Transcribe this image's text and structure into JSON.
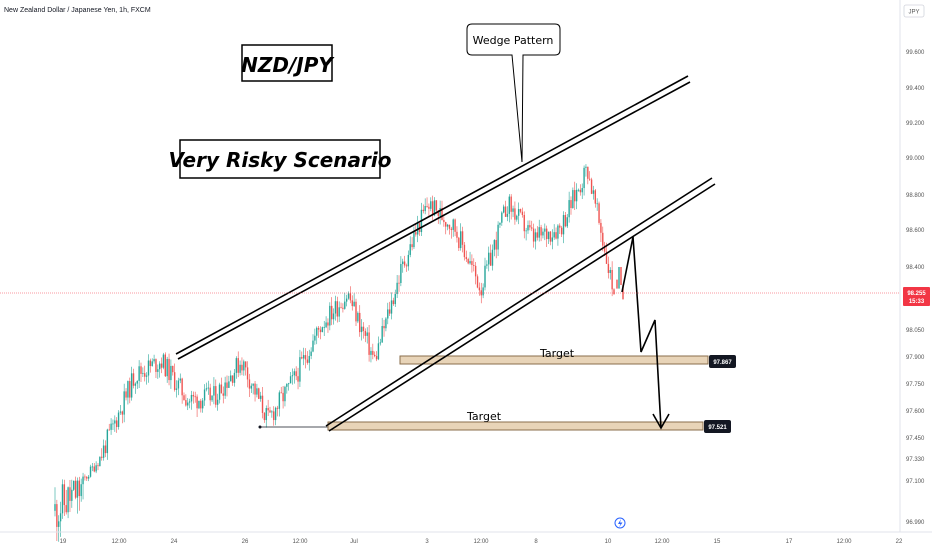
{
  "header": {
    "symbol_description": "New Zealand Dollar / Japanese Yen, 1h, FXCM",
    "currency": "JPY"
  },
  "annotations": {
    "title_box": "NZD/JPY",
    "scenario_box": "Very Risky Scenario",
    "pattern_note": "Wedge Pattern",
    "target_1_label": "Target",
    "target_2_label": "Target"
  },
  "colors": {
    "up": "#26a69a",
    "down": "#ef5350",
    "price_line": "#f23645",
    "target_zone_fill": "#e8d4b8",
    "target_zone_border": "#8a6e4b",
    "badge_bg": "#131722"
  },
  "icons": {
    "flash_marker": "lightning-icon"
  },
  "chart_data": {
    "type": "candlestick",
    "title": "New Zealand Dollar / Japanese Yen, 1h, FXCM",
    "ylabel": "JPY",
    "ylim": [
      96.96,
      99.9
    ],
    "y_ticks": [
      "99.600",
      "99.400",
      "99.200",
      "99.000",
      "98.800",
      "98.600",
      "98.400",
      "98.050",
      "97.900",
      "97.750",
      "97.600",
      "97.450",
      "97.330",
      "97.100",
      "96.990"
    ],
    "x_ticks": [
      "19",
      "12:00",
      "24",
      "26",
      "12:00",
      "Jul",
      "3",
      "12:00",
      "8",
      "10",
      "12:00",
      "15",
      "17",
      "12:00",
      "22"
    ],
    "grid": false,
    "current_price": {
      "value": "98.255",
      "countdown": "15:33"
    },
    "targets": [
      {
        "label": "Target",
        "value": "97.867"
      },
      {
        "label": "Target",
        "value": "97.521"
      }
    ],
    "wedge_pattern": {
      "upper_line": [
        {
          "x": "Jun 23",
          "y": 97.93
        },
        {
          "x": "Jul 13",
          "y": 99.45
        }
      ],
      "lower_line": [
        {
          "x": "Jun 27",
          "y": 97.47
        },
        {
          "x": "Jul 13",
          "y": 98.85
        }
      ]
    },
    "projected_path": [
      98.62,
      98.28,
      97.92,
      98.05,
      97.48
    ],
    "close_waypoints": [
      {
        "x": "Jun 18",
        "y": 97.02
      },
      {
        "x": "Jun 19",
        "y": 97.08
      },
      {
        "x": "Jun 21",
        "y": 97.45
      },
      {
        "x": "Jun 23",
        "y": 97.8
      },
      {
        "x": "Jun 24",
        "y": 97.88
      },
      {
        "x": "Jun 25",
        "y": 97.66
      },
      {
        "x": "Jun 26",
        "y": 97.68
      },
      {
        "x": "Jun 27",
        "y": 97.88
      },
      {
        "x": "Jun 28",
        "y": 97.55
      },
      {
        "x": "Jun 29",
        "y": 97.78
      },
      {
        "x": "Jun 30",
        "y": 98.08
      },
      {
        "x": "Jul 1",
        "y": 98.25
      },
      {
        "x": "Jul 2",
        "y": 97.88
      },
      {
        "x": "Jul 3",
        "y": 98.38
      },
      {
        "x": "Jul 4",
        "y": 98.75
      },
      {
        "x": "Jul 5",
        "y": 98.62
      },
      {
        "x": "Jul 6",
        "y": 98.28
      },
      {
        "x": "Jul 7",
        "y": 98.75
      },
      {
        "x": "Jul 8",
        "y": 98.55
      },
      {
        "x": "Jul 9",
        "y": 98.62
      },
      {
        "x": "Jul 10",
        "y": 98.95
      },
      {
        "x": "Jul 10 12:00",
        "y": 98.25
      }
    ]
  }
}
